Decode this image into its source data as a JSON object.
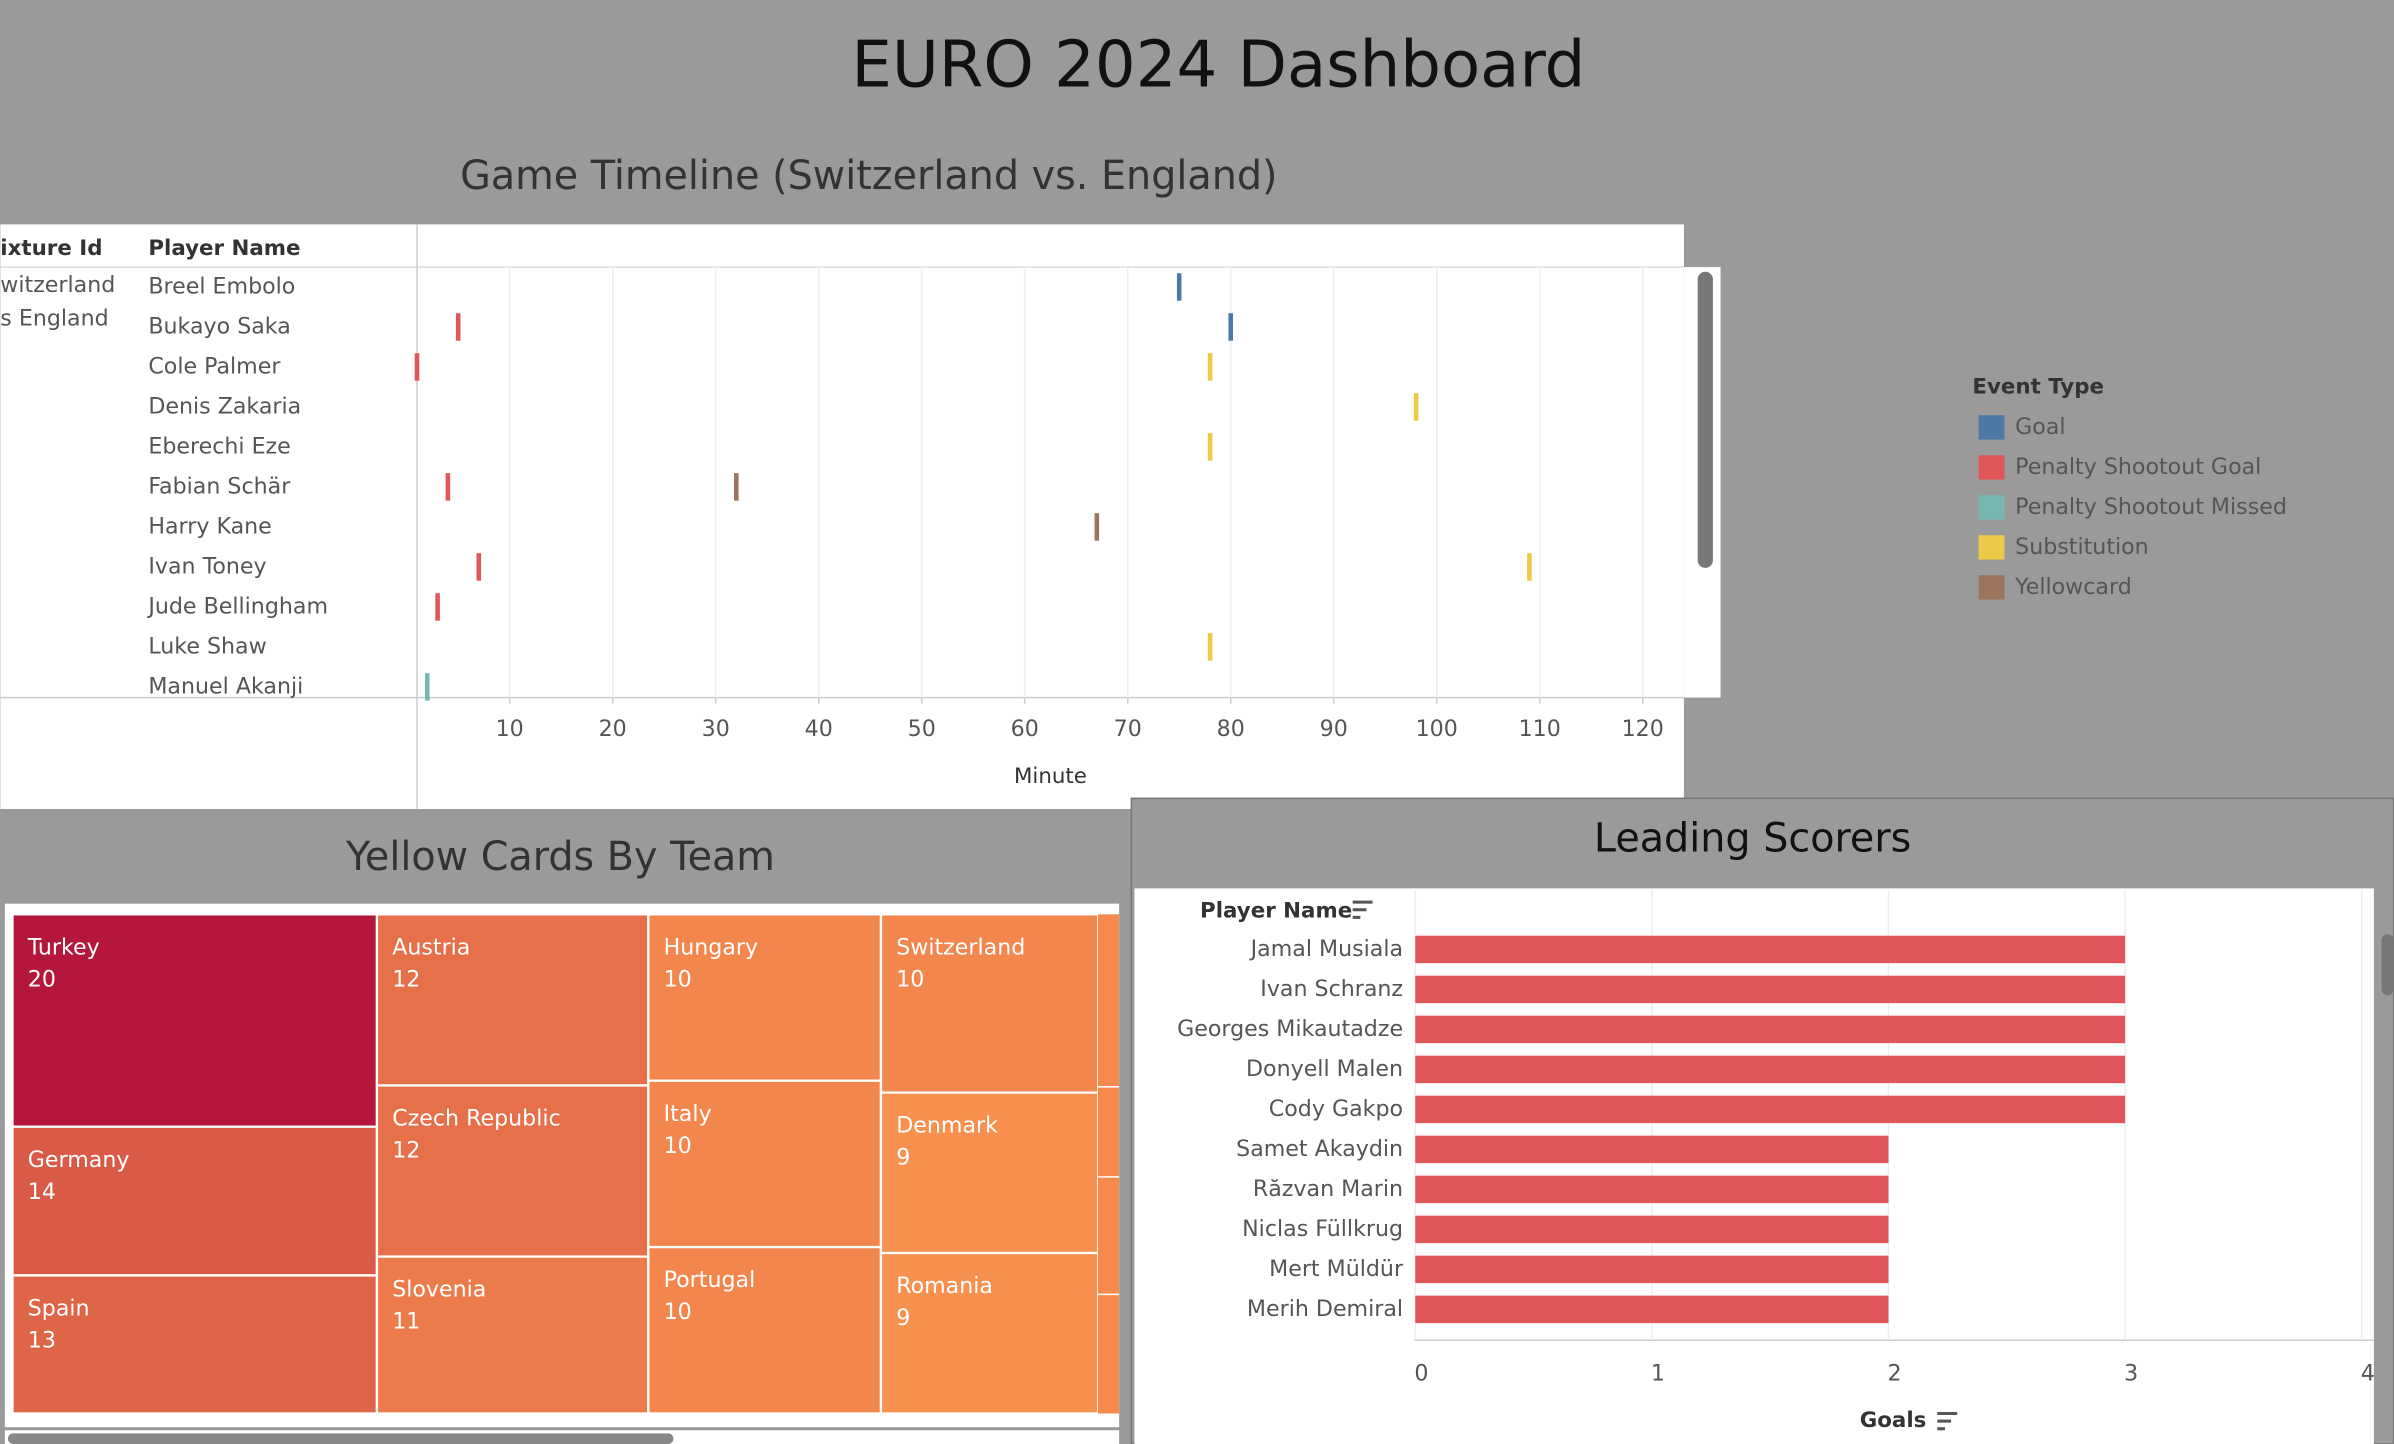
{
  "title": "EURO 2024 Dashboard",
  "chart_data": [
    {
      "type": "timeline",
      "title": "Game Timeline (Switzerland vs. England)",
      "row_headers": [
        "ixture Id",
        "Player Name"
      ],
      "fixture": [
        "witzerland",
        "s England"
      ],
      "categories": [
        "Breel Embolo",
        "Bukayo Saka",
        "Cole Palmer",
        "Denis Zakaria",
        "Eberechi Eze",
        "Fabian Schär",
        "Harry Kane",
        "Ivan Toney",
        "Jude Bellingham",
        "Luke Shaw",
        "Manuel Akanji"
      ],
      "series": [
        {
          "name": "Goal",
          "color": "#4e79a7",
          "values": [
            75,
            80,
            null,
            null,
            null,
            null,
            null,
            null,
            null,
            null,
            null
          ]
        },
        {
          "name": "Penalty Shootout Goal",
          "color": "#e15759",
          "values": [
            null,
            5,
            1,
            null,
            null,
            4,
            null,
            7,
            3,
            null,
            null
          ]
        },
        {
          "name": "Penalty Shootout Missed",
          "color": "#76b7b2",
          "values": [
            null,
            null,
            null,
            null,
            null,
            null,
            null,
            null,
            null,
            null,
            2
          ]
        },
        {
          "name": "Substitution",
          "color": "#edc948",
          "values": [
            null,
            null,
            78,
            98,
            78,
            null,
            null,
            109,
            null,
            78,
            null
          ]
        },
        {
          "name": "Yellowcard",
          "color": "#9c755f",
          "values": [
            null,
            null,
            null,
            null,
            null,
            32,
            67,
            null,
            null,
            null,
            null
          ]
        }
      ],
      "xlim": [
        1,
        124
      ],
      "xticks": [
        10,
        20,
        30,
        40,
        50,
        60,
        70,
        80,
        90,
        100,
        110,
        120
      ],
      "xlabel": "Minute",
      "grid": true,
      "legend_title": "Event Type",
      "legend_position": "right"
    },
    {
      "type": "treemap",
      "title": "Yellow Cards By Team",
      "categories": [
        "Turkey",
        "Germany",
        "Spain",
        "Austria",
        "Czech Republic",
        "Slovenia",
        "Hungary",
        "Italy",
        "Portugal",
        "Switzerland",
        "Denmark",
        "Romania"
      ],
      "values": [
        20,
        14,
        13,
        12,
        12,
        11,
        10,
        10,
        10,
        10,
        9,
        9
      ],
      "color_range": [
        "#f8914f",
        "#b4173b"
      ]
    },
    {
      "type": "hbar",
      "title": "Leading Scorers",
      "row_header": "Player Name",
      "categories": [
        "Jamal Musiala",
        "Ivan Schranz",
        "Georges Mikautadze",
        "Donyell Malen",
        "Cody Gakpo",
        "Samet Akaydin",
        "Răzvan Marin",
        "Niclas Füllkrug",
        "Mert Müldür",
        "Merih Demiral"
      ],
      "values": [
        3,
        3,
        3,
        3,
        3,
        2,
        2,
        2,
        2,
        2
      ],
      "color": "#e15759",
      "xlim": [
        0,
        4
      ],
      "xticks": [
        0,
        1,
        2,
        3,
        4
      ],
      "xlabel": "Goals",
      "grid": true
    }
  ]
}
